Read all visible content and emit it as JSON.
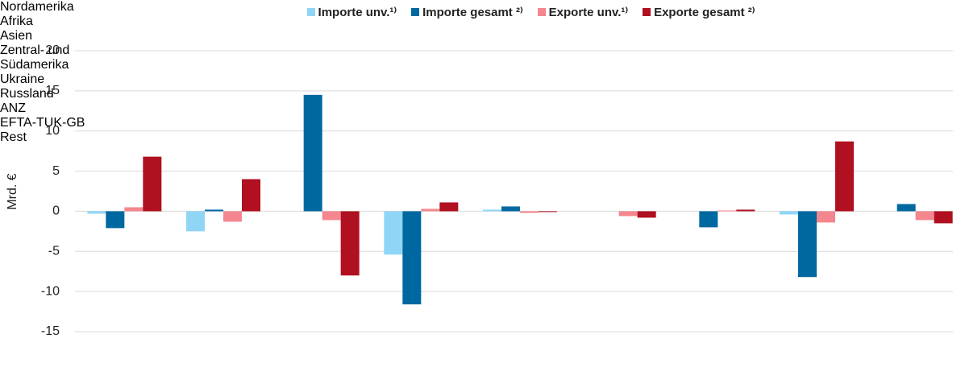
{
  "chart_data": {
    "type": "bar",
    "ylabel": "Mrd. €",
    "categories": [
      "Nordamerika",
      "Afrika",
      "Asien",
      "Zentral- und Südamerika",
      "Ukraine",
      "Russland",
      "ANZ",
      "EFTA-TUK-GB",
      "Rest"
    ],
    "series": [
      {
        "name": "Importe unv.¹⁾",
        "color": "#8fd6f6",
        "values": [
          -0.3,
          -2.5,
          0,
          -5.4,
          0.2,
          0,
          0,
          -0.4,
          0
        ]
      },
      {
        "name": "Importe gesamt ²⁾",
        "color": "#0068a0",
        "values": [
          -2.1,
          0.2,
          14.5,
          -11.6,
          0.6,
          0,
          -2.0,
          -8.2,
          0.9
        ]
      },
      {
        "name": "Exporte unv.¹⁾",
        "color": "#f4868f",
        "values": [
          0.5,
          -1.3,
          -1.1,
          0.3,
          -0.2,
          -0.6,
          0.1,
          -1.4,
          -1.1
        ]
      },
      {
        "name": "Exporte gesamt ²⁾",
        "color": "#b0101f",
        "values": [
          6.8,
          4.0,
          -8.0,
          1.1,
          -0.1,
          -0.8,
          0.2,
          8.7,
          -1.5
        ]
      }
    ],
    "ylim": [
      -15,
      20
    ],
    "yticks": [
      -15,
      -10,
      -5,
      0,
      5,
      10,
      15,
      20
    ],
    "grid": true,
    "legend": "top"
  }
}
